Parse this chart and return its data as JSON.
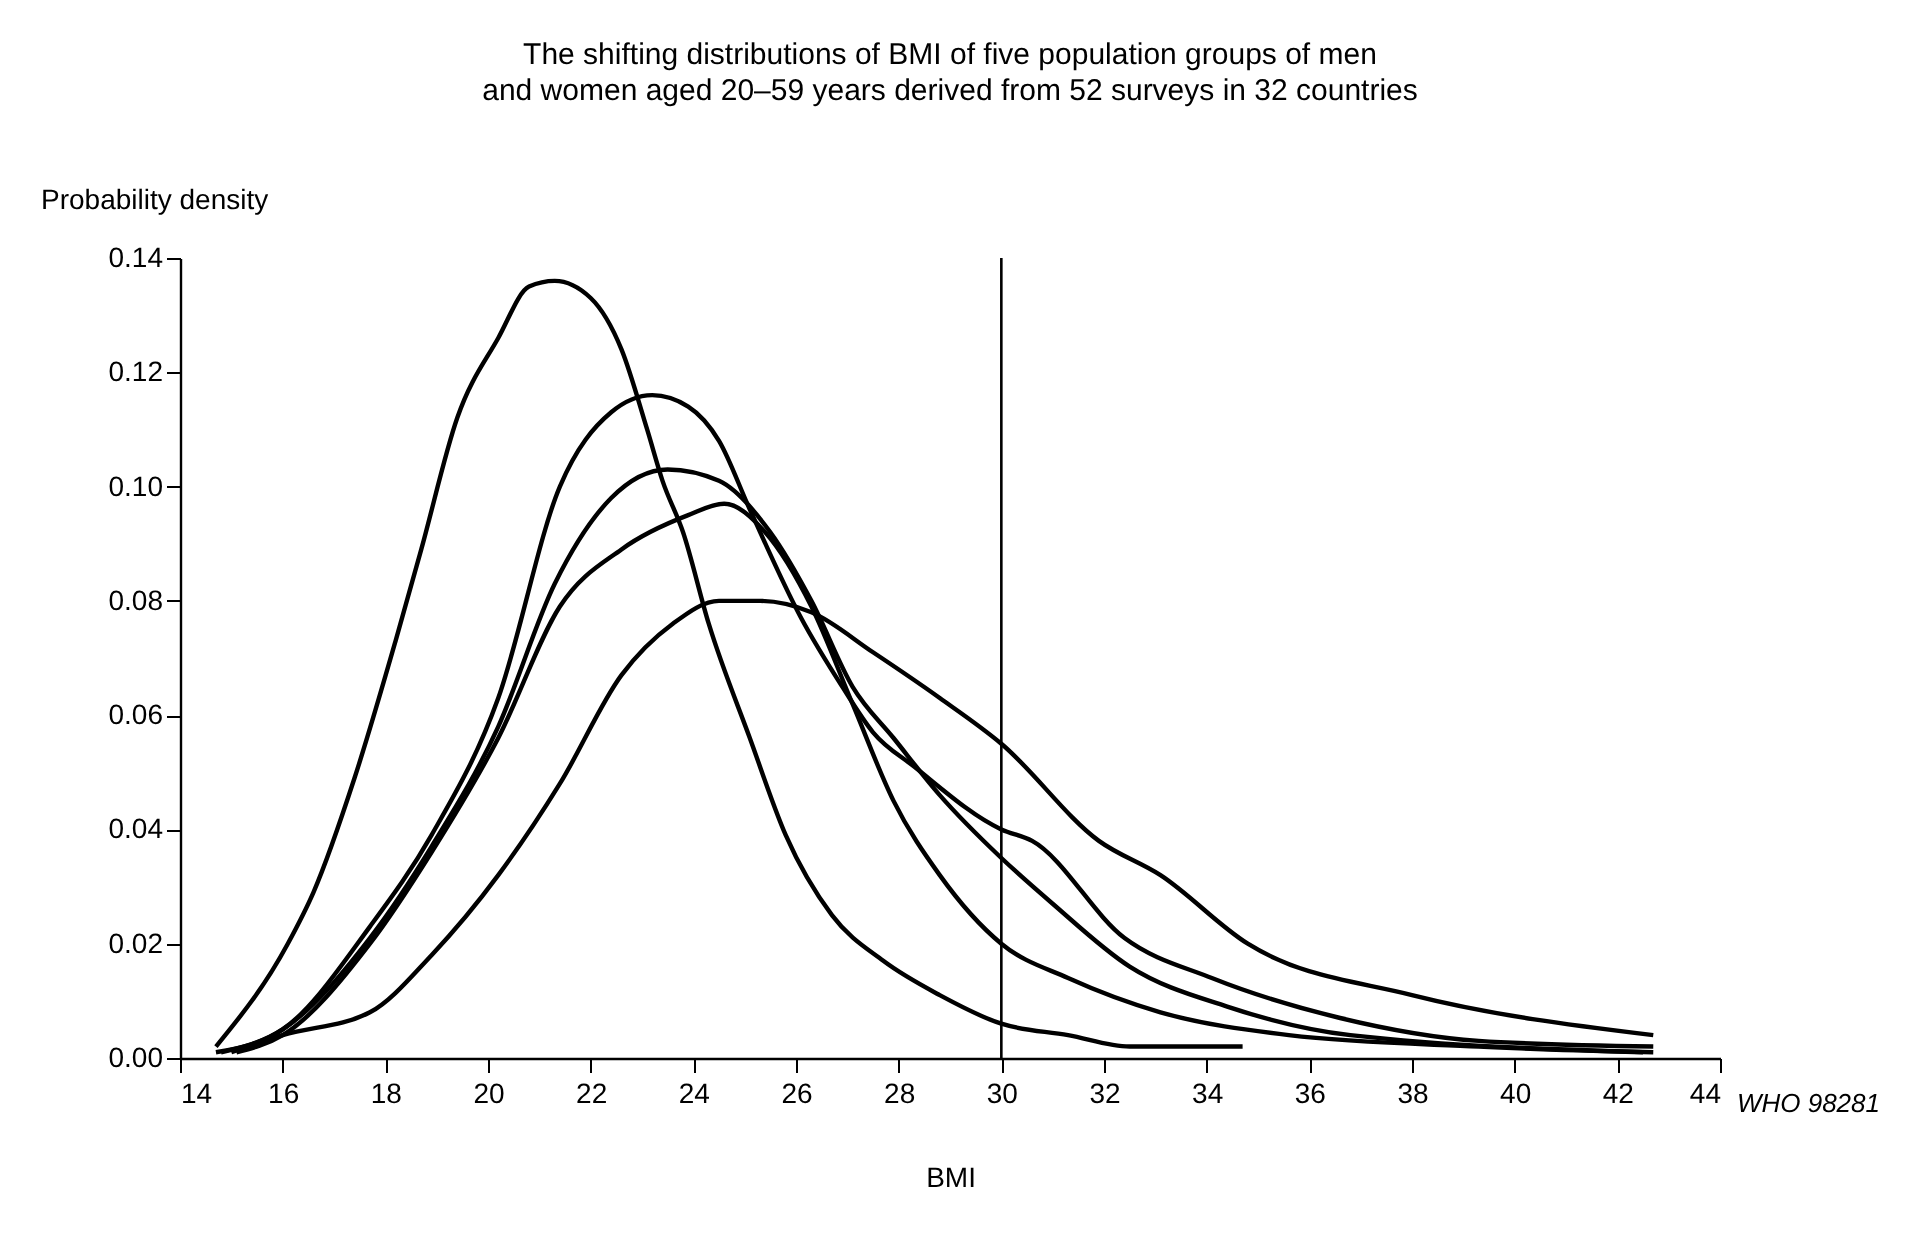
{
  "chart_data": {
    "type": "line",
    "title": "The shifting distributions of BMI of five population groups of men and women aged 20–59 years derived from 52 surveys in 32 countries",
    "xlabel": "BMI",
    "ylabel": "Probability density",
    "annotations": [
      "WHO 98281"
    ],
    "xlim": [
      14,
      44
    ],
    "xticks": [
      14,
      16,
      18,
      20,
      22,
      24,
      26,
      28,
      30,
      32,
      34,
      36,
      38,
      40,
      42,
      44
    ],
    "ylim": [
      0,
      0.14
    ],
    "yticks": [
      {
        "value": 0,
        "label": "0.00"
      },
      {
        "value": 0.02,
        "label": "0.02"
      },
      {
        "value": 0.04,
        "label": "0.04"
      },
      {
        "value": 0.06,
        "label": "0.06"
      },
      {
        "value": 0.08,
        "label": "0.08"
      },
      {
        "value": 0.1,
        "label": "0.10"
      },
      {
        "value": 0.12,
        "label": "0.12"
      },
      {
        "value": 0.14,
        "label": "0.14"
      }
    ],
    "grid": false,
    "legend": false,
    "marker": "none",
    "line_style": "solid",
    "ref_lines": [
      {
        "axis": "x",
        "value": 30,
        "color": "#000000"
      }
    ],
    "series": [
      {
        "color": "#000000",
        "x": [
          14.7,
          16.1,
          16.6,
          17.4,
          18.2,
          18.7,
          19.4,
          20.2,
          20.8,
          21.3,
          22.0,
          22.6,
          23.1,
          23.4,
          23.8,
          24.3,
          25.1,
          25.8,
          26.7,
          27.7,
          28.8,
          30.0,
          31.3,
          32.5,
          34.7
        ],
        "values": [
          0.002,
          0.02,
          0.029,
          0.049,
          0.073,
          0.089,
          0.112,
          0.126,
          0.135,
          0.136,
          0.133,
          0.124,
          0.11,
          0.101,
          0.092,
          0.076,
          0.056,
          0.039,
          0.025,
          0.017,
          0.011,
          0.006,
          0.004,
          0.002,
          0.002
        ]
      },
      {
        "color": "#000000",
        "x": [
          14.7,
          16.0,
          17.7,
          18.9,
          20.2,
          21.4,
          22.4,
          23.2,
          23.9,
          24.5,
          25.1,
          26.1,
          26.9,
          27.5,
          28.3,
          30.0,
          30.6,
          32.4,
          34.1,
          36.6,
          39.3,
          42.7
        ],
        "values": [
          0.001,
          0.005,
          0.023,
          0.039,
          0.063,
          0.1,
          0.113,
          0.116,
          0.114,
          0.108,
          0.096,
          0.077,
          0.065,
          0.057,
          0.051,
          0.04,
          0.038,
          0.021,
          0.014,
          0.007,
          0.003,
          0.002
        ]
      },
      {
        "color": "#000000",
        "x": [
          14.8,
          16.0,
          17.7,
          18.9,
          20.2,
          21.3,
          22.4,
          23.5,
          24.5,
          25.5,
          26.3,
          27.1,
          27.9,
          28.8,
          30.0,
          31.0,
          32.5,
          34.4,
          36.8,
          42.7
        ],
        "values": [
          0.001,
          0.005,
          0.021,
          0.037,
          0.058,
          0.083,
          0.098,
          0.103,
          0.101,
          0.092,
          0.08,
          0.065,
          0.056,
          0.046,
          0.035,
          0.027,
          0.016,
          0.009,
          0.004,
          0.001
        ]
      },
      {
        "color": "#000000",
        "x": [
          15.1,
          16.0,
          17.7,
          18.9,
          20.2,
          21.4,
          22.6,
          23.9,
          24.6,
          25.4,
          26.3,
          27.1,
          27.9,
          28.8,
          30.0,
          31.3,
          33.1,
          35.6,
          39.3,
          42.5
        ],
        "values": [
          0.001,
          0.004,
          0.02,
          0.036,
          0.056,
          0.079,
          0.089,
          0.095,
          0.097,
          0.092,
          0.079,
          0.062,
          0.045,
          0.032,
          0.02,
          0.014,
          0.008,
          0.004,
          0.002,
          0.001
        ]
      },
      {
        "color": "#000000",
        "x": [
          15.0,
          16.0,
          17.7,
          18.9,
          20.2,
          21.4,
          22.6,
          23.6,
          24.5,
          25.3,
          26.3,
          27.5,
          28.8,
          30.0,
          31.9,
          33.1,
          34.8,
          38.0,
          42.7
        ],
        "values": [
          0.001,
          0.004,
          0.008,
          0.018,
          0.032,
          0.048,
          0.067,
          0.076,
          0.08,
          0.08,
          0.078,
          0.071,
          0.063,
          0.055,
          0.038,
          0.032,
          0.02,
          0.011,
          0.004
        ]
      }
    ]
  }
}
